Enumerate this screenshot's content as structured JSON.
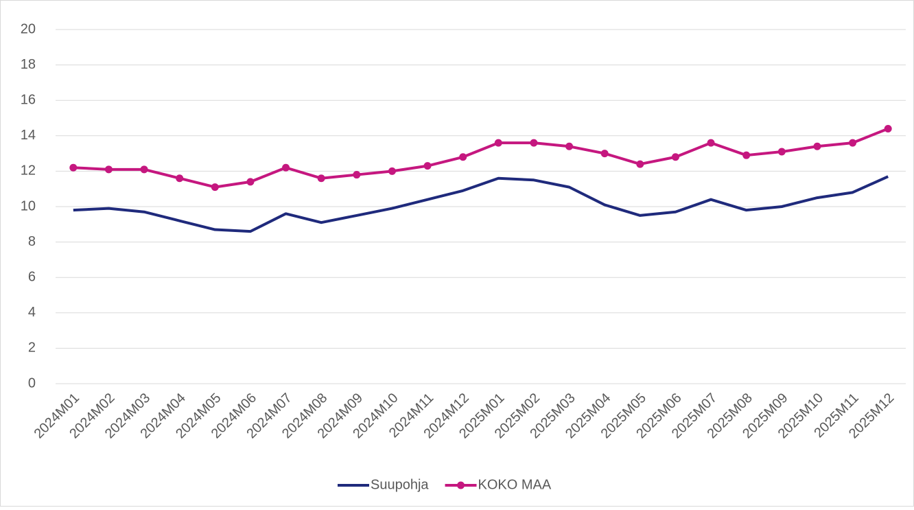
{
  "chart_data": {
    "type": "line",
    "categories": [
      "2024M01",
      "2024M02",
      "2024M03",
      "2024M04",
      "2024M05",
      "2024M06",
      "2024M07",
      "2024M08",
      "2024M09",
      "2024M10",
      "2024M11",
      "2024M12",
      "2025M01",
      "2025M02",
      "2025M03",
      "2025M04",
      "2025M05",
      "2025M06",
      "2025M07",
      "2025M08",
      "2025M09",
      "2025M10",
      "2025M11",
      "2025M12"
    ],
    "series": [
      {
        "name": "Suupohja",
        "color": "#1f2a7c",
        "marker": false,
        "values": [
          9.8,
          9.9,
          9.7,
          9.2,
          8.7,
          8.6,
          9.6,
          9.1,
          9.5,
          9.9,
          10.4,
          10.9,
          11.6,
          11.5,
          11.1,
          10.1,
          9.5,
          9.7,
          10.4,
          9.8,
          10.0,
          10.5,
          10.8,
          11.7
        ]
      },
      {
        "name": "KOKO MAA",
        "color": "#c5177f",
        "marker": true,
        "values": [
          12.2,
          12.1,
          12.1,
          11.6,
          11.1,
          11.4,
          12.2,
          11.6,
          11.8,
          12.0,
          12.3,
          12.8,
          13.6,
          13.6,
          13.4,
          13.0,
          12.4,
          12.8,
          13.6,
          12.9,
          13.1,
          13.4,
          13.6,
          14.4
        ]
      }
    ],
    "ylim": [
      0,
      20
    ],
    "yticks": [
      0,
      2,
      4,
      6,
      8,
      10,
      12,
      14,
      16,
      18,
      20
    ],
    "grid": true,
    "legend": "bottom"
  }
}
